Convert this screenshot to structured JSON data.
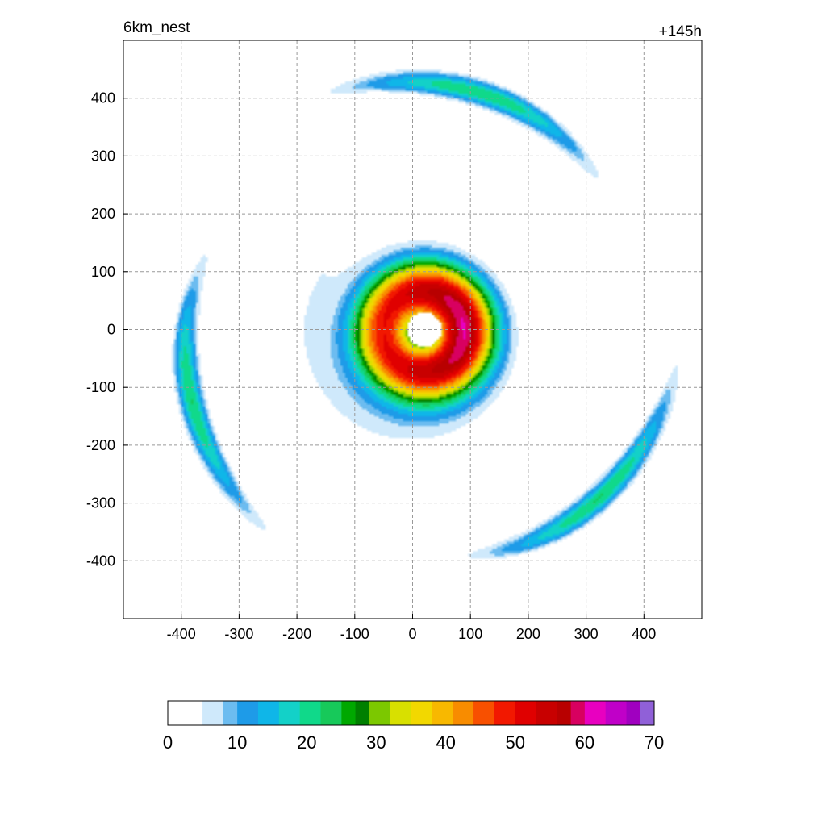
{
  "chart_data": {
    "type": "heatmap",
    "title_left": "6km_nest",
    "title_right": "+145h",
    "xlabel": "",
    "ylabel": "",
    "xlim": [
      -500,
      500
    ],
    "ylim": [
      -500,
      500
    ],
    "x_ticks": [
      -400,
      -300,
      -200,
      -100,
      0,
      100,
      200,
      300,
      400
    ],
    "y_ticks": [
      -400,
      -300,
      -200,
      -100,
      0,
      100,
      200,
      300,
      400
    ],
    "x_tick_labels": [
      "-400",
      "-300",
      "-200",
      "-100",
      "0",
      "100",
      "200",
      "300",
      "400"
    ],
    "y_tick_labels": [
      "-400",
      "-300",
      "-200",
      "-100",
      "0",
      "100",
      "200",
      "300",
      "400"
    ],
    "grid": true,
    "eye_center": [
      20,
      0
    ],
    "eye_radius": 30,
    "peak_value": 50,
    "colorbar": {
      "range": [
        0,
        70
      ],
      "ticks": [
        0,
        10,
        20,
        30,
        40,
        50,
        60,
        70
      ],
      "tick_labels": [
        "0",
        "10",
        "20",
        "30",
        "40",
        "50",
        "60",
        "70"
      ],
      "levels": [
        {
          "value": 0,
          "color": "#ffffff"
        },
        {
          "value": 5,
          "color": "#cfe9fb"
        },
        {
          "value": 8,
          "color": "#6cbcf0"
        },
        {
          "value": 10,
          "color": "#1e9be8"
        },
        {
          "value": 13,
          "color": "#0fb6e8"
        },
        {
          "value": 16,
          "color": "#13d1c8"
        },
        {
          "value": 19,
          "color": "#10d98a"
        },
        {
          "value": 22,
          "color": "#17c95a"
        },
        {
          "value": 25,
          "color": "#00a800"
        },
        {
          "value": 27,
          "color": "#007f00"
        },
        {
          "value": 29,
          "color": "#7cc800"
        },
        {
          "value": 32,
          "color": "#d8e000"
        },
        {
          "value": 35,
          "color": "#f2d800"
        },
        {
          "value": 38,
          "color": "#f8b800"
        },
        {
          "value": 41,
          "color": "#f88c00"
        },
        {
          "value": 44,
          "color": "#f85000"
        },
        {
          "value": 47,
          "color": "#f21800"
        },
        {
          "value": 50,
          "color": "#e00000"
        },
        {
          "value": 53,
          "color": "#c80000"
        },
        {
          "value": 56,
          "color": "#b80000"
        },
        {
          "value": 58,
          "color": "#d80060"
        },
        {
          "value": 60,
          "color": "#e800c0"
        },
        {
          "value": 63,
          "color": "#c000c8"
        },
        {
          "value": 66,
          "color": "#a000c0"
        },
        {
          "value": 68,
          "color": "#9060d8"
        },
        {
          "value": 70,
          "color": "#b090e0"
        }
      ]
    }
  }
}
